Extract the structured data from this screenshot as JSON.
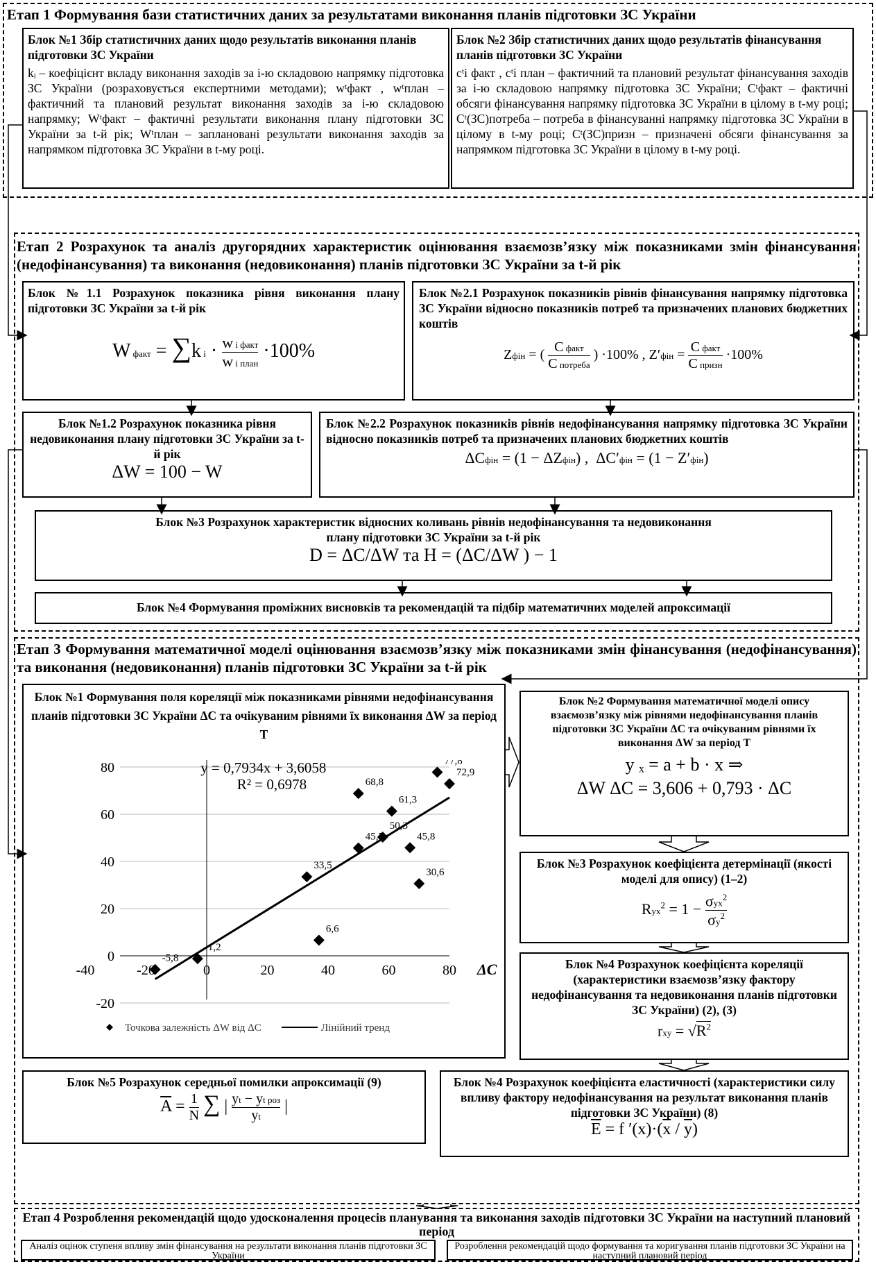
{
  "stage1": {
    "title": "Етап 1 Формування бази статистичних даних за результатами виконання планів підготовки ЗС України",
    "block1": {
      "title": "Блок №1 Збір статистичних даних щодо результатів виконання планів підготовки ЗС України",
      "text": "kᵢ – коефіцієнт вкладу виконання заходів за і-ю складовою напрямку підготовка ЗС України (розраховується експертними методами); wᵗфакт , wᵗплан – фактичний та плановий результат виконання заходів за і-ю складовою напрямку; Wᵗфакт – фактичні результати виконання плану підготовки ЗС України за t-й рік; Wᵗплан – заплановані результати виконання заходів за напрямком підготовка ЗС України в t-му році."
    },
    "block2": {
      "title": "Блок №2 Збір статистичних даних щодо результатів фінансування планів підготовки ЗС України",
      "text": "cᵗі факт , cᵗі план – фактичний та плановий результат фінансування заходів за і-ю складовою напрямку підготовка ЗС України; Cᵗфакт – фактичні обсяги фінансування напрямку підготовка ЗС України в цілому в t-му році; Cᵗ(ЗС)потреба – потреба в фінансуванні напрямку підготовка ЗС України в цілому в t-му році; Cᵗ(ЗС)призн – призначені обсяги фінансування за напрямком підготовка ЗС України в цілому в t-му році."
    }
  },
  "stage2": {
    "title": "Етап 2 Розрахунок та аналіз другорядних характеристик оцінювання взаємозв’язку між показниками змін фінансування (недофінансування) та виконання (недовиконання) планів підготовки ЗС України за t-й рік",
    "block11": {
      "title": "Блок №1.1 Розрахунок показника рівня виконання плану підготовки ЗС України за t-й рік"
    },
    "block21": {
      "title": "Блок №2.1 Розрахунок показників рівнів фінансування напрямку підготовка ЗС України відносно показників потреб та призначених планових бюджетних коштів"
    },
    "block12": {
      "title": "Блок №1.2 Розрахунок показника рівня недовиконання плану підготовки ЗС України за t-й рік",
      "formula": "ΔW = 100 − W"
    },
    "block22": {
      "title": "Блок №2.2 Розрахунок показників рівнів недофінансування напрямку підготовка ЗС України відносно показників потреб та призначених планових бюджетних коштів"
    },
    "block3": {
      "title": "Блок №3 Розрахунок характеристик відносних коливань рівнів недофінансування та недовиконання плану підготовки ЗС України за t-й рік",
      "formula": "D = ΔC/ΔW   та   H = (ΔC/ΔW ) − 1"
    },
    "block4": {
      "title": "Блок №4 Формування проміжних висновків та рекомендацій та підбір математичних моделей апроксимації"
    }
  },
  "stage3": {
    "title": "Етап 3 Формування математичної моделі оцінювання взаємозв’язку між показниками змін фінансування (недофінансування) та виконання (недовиконання) планів підготовки ЗС України за t-й рік",
    "block1": {
      "title": "Блок №1 Формування поля кореляції між показниками рівнями недофінансування планів підготовки ЗС України ΔC та очікуваним рівнями їх виконання ΔW за період T"
    },
    "block2": {
      "title": "Блок №2 Формування математичної моделі опису взаємозв’язку між рівнями недофінансування планів підготовки ЗС України ΔC та очікуваним рівнями їх виконання ΔW за період T",
      "formula1": "y ₓ = a + b · x ⇒",
      "formula2": "ΔW ΔC = 3,606 + 0,793 · ΔC"
    },
    "block3": {
      "title": "Блок №3 Розрахунок коефіцієнта детермінації (якості моделі для опису) (1–2)"
    },
    "block4a": {
      "title": "Блок №4 Розрахунок коефіцієнта кореляції (характеристики взаємозв’язку фактору недофінансування та недовиконання планів підготовки ЗС України) (2), (3)"
    },
    "block5": {
      "title": "Блок №5 Розрахунок середньої помилки апроксимації (9)"
    },
    "block4b": {
      "title": "Блок №4 Розрахунок коефіцієнта еластичності (характеристики силу впливу фактору недофінансування на результат виконання планів підготовки ЗС України) (8)"
    }
  },
  "stage4": {
    "title": "Етап 4 Розроблення рекомендацій щодо удосконалення процесів планування та виконання заходів підготовки ЗС України на наступний плановий період",
    "left": "Аналіз оцінок ступеня впливу змін фінансування на результати виконання планів підготовки ЗС України",
    "right": "Розроблення рекомендацій щодо формування та коригування планів підготовки ЗС України на наступний плановий період"
  },
  "chart_data": {
    "type": "scatter",
    "xlabel": "ΔC",
    "ylabel": "ΔW",
    "xlim": [
      -40,
      80
    ],
    "ylim": [
      -20,
      80
    ],
    "xticks": [
      "-40",
      "-20",
      "0",
      "20",
      "40",
      "60",
      "80"
    ],
    "yticks": [
      "-20",
      "0",
      "20",
      "40",
      "60",
      "80"
    ],
    "points": [
      {
        "x": -17,
        "y": -5.8,
        "label": "-5,8"
      },
      {
        "x": -3,
        "y": -1.2,
        "label": "-1,2"
      },
      {
        "x": 33,
        "y": 33.5,
        "label": "33,5"
      },
      {
        "x": 37,
        "y": 6.6,
        "label": "6,6"
      },
      {
        "x": 50,
        "y": 45.7,
        "label": "45,7"
      },
      {
        "x": 50,
        "y": 68.8,
        "label": "68,8"
      },
      {
        "x": 58,
        "y": 50.3,
        "label": "50,3"
      },
      {
        "x": 61,
        "y": 61.3,
        "label": "61,3"
      },
      {
        "x": 67,
        "y": 45.8,
        "label": "45,8"
      },
      {
        "x": 70,
        "y": 30.6,
        "label": "30,6"
      },
      {
        "x": 76,
        "y": 77.8,
        "label": "77,8"
      },
      {
        "x": 80,
        "y": 72.9,
        "label": "72,9"
      }
    ],
    "trend": {
      "slope": 0.7934,
      "intercept": 3.6058,
      "x_from": -17,
      "x_to": 80
    },
    "equation": "y = 0,7934x + 3,6058",
    "r2": "R² = 0,6978",
    "legend": [
      "Точкова залежність ΔW від ΔC",
      "Лінійний тренд"
    ],
    "legend_position": "bottom"
  }
}
